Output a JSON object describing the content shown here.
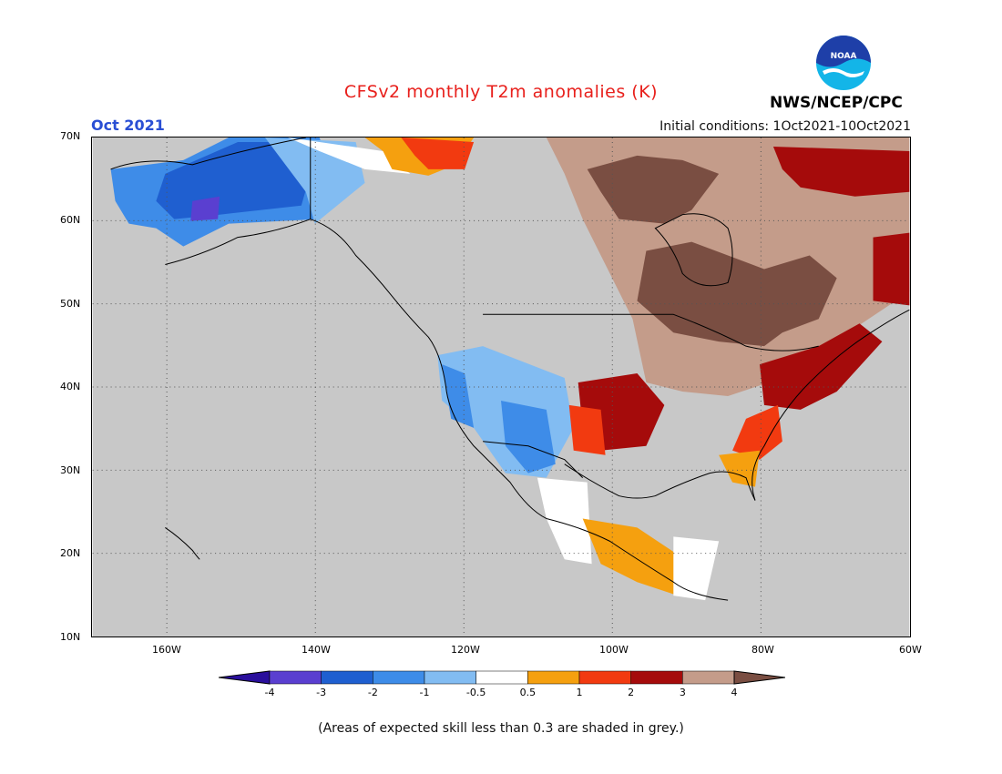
{
  "header": {
    "title": "CFSv2 monthly T2m anomalies (K)",
    "month": "Oct 2021",
    "initial_conditions": "Initial conditions: 1Oct2021-10Oct2021",
    "agency": "NWS/NCEP/CPC",
    "logo_text": "NOAA"
  },
  "map": {
    "lat_labels": [
      "70N",
      "60N",
      "50N",
      "40N",
      "30N",
      "20N",
      "10N"
    ],
    "lon_labels": [
      "160W",
      "140W",
      "120W",
      "100W",
      "80W",
      "60W"
    ],
    "lat_range": [
      10,
      70
    ],
    "lon_range": [
      -170,
      -60
    ],
    "background_color": "#c8c8c8",
    "grid_style": "dotted"
  },
  "legend": {
    "tick_labels": [
      "-4",
      "-3",
      "-2",
      "-1",
      "-0.5",
      "0.5",
      "1",
      "2",
      "3",
      "4"
    ],
    "colors": [
      "#2a0f9c",
      "#5a3fd0",
      "#1f5fd0",
      "#3e8ce8",
      "#82bcf2",
      "#ffffff",
      "#f5a00f",
      "#f23a10",
      "#a50b0b",
      "#c49c8a",
      "#7a4e42"
    ]
  },
  "footnote": "(Areas of expected skill less than 0.3 are shaded in grey.)"
}
